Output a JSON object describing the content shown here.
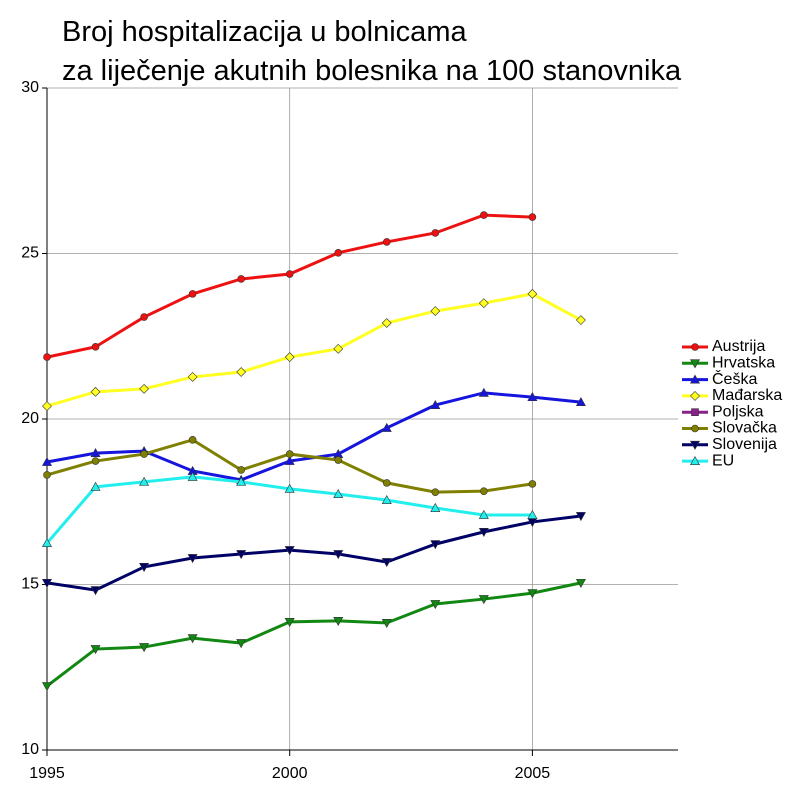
{
  "chart_data": {
    "type": "line",
    "title": [
      "Broj hospitalizacija u bolnicama",
      "za liječenje akutnih bolesnika na 100 stanovnika"
    ],
    "x": [
      1995,
      1996,
      1997,
      1998,
      1999,
      2000,
      2001,
      2002,
      2003,
      2004,
      2005,
      2006
    ],
    "xlim": [
      1995,
      2008
    ],
    "xticks": [
      1995,
      2000,
      2005
    ],
    "ylim": [
      10,
      30
    ],
    "yticks": [
      10,
      15,
      20,
      25,
      30
    ],
    "grid": true,
    "legend": "right",
    "series": [
      {
        "name": "Austrija",
        "color": "#ee1111",
        "marker": "circle",
        "values": [
          21.87,
          22.18,
          23.08,
          23.78,
          24.23,
          24.38,
          25.02,
          25.35,
          25.62,
          26.16,
          26.1,
          null
        ]
      },
      {
        "name": "Hrvatska",
        "color": "#118811",
        "marker": "triangle-down",
        "values": [
          11.93,
          13.05,
          13.11,
          13.38,
          13.23,
          13.87,
          13.9,
          13.84,
          14.41,
          14.56,
          14.74,
          15.05
        ]
      },
      {
        "name": "Češka",
        "color": "#1515dd",
        "marker": "triangle-up",
        "values": [
          18.7,
          18.97,
          19.03,
          18.43,
          18.16,
          18.73,
          18.94,
          19.73,
          20.42,
          20.79,
          20.66,
          20.51
        ]
      },
      {
        "name": "Mađarska",
        "color": "#ffff22",
        "marker": "diamond",
        "values": [
          20.39,
          20.82,
          20.91,
          21.27,
          21.42,
          21.87,
          22.12,
          22.9,
          23.26,
          23.5,
          23.78,
          22.99
        ]
      },
      {
        "name": "Poljska",
        "color": "#882288",
        "marker": "square",
        "values": [
          null,
          null,
          null,
          null,
          null,
          null,
          null,
          null,
          null,
          null,
          null,
          null
        ]
      },
      {
        "name": "Slovačka",
        "color": "#808000",
        "marker": "circle",
        "values": [
          18.31,
          18.73,
          18.94,
          19.37,
          18.46,
          18.94,
          18.76,
          18.07,
          17.79,
          17.82,
          18.04,
          null
        ]
      },
      {
        "name": "Slovenija",
        "color": "#000066",
        "marker": "triangle-down",
        "values": [
          15.05,
          14.83,
          15.53,
          15.8,
          15.92,
          16.04,
          15.92,
          15.68,
          16.22,
          16.59,
          16.89,
          17.07
        ]
      },
      {
        "name": "EU",
        "color": "#22eeee",
        "marker": "triangle-up",
        "values": [
          16.25,
          17.95,
          18.1,
          18.25,
          18.1,
          17.89,
          17.73,
          17.55,
          17.31,
          17.1,
          17.1,
          null
        ]
      }
    ]
  }
}
